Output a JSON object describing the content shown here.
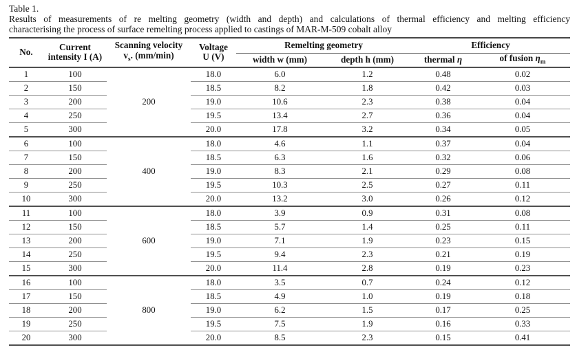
{
  "caption": {
    "label": "Table 1.",
    "line1": "Results of measurements of re melting geometry (width and depth) and calculations of thermal efficiency and melting efficiency",
    "line2": "characterising the process of surface remelting process applied to castings of MAR-M-509 cobalt alloy"
  },
  "table": {
    "header": {
      "no": "No.",
      "current_line1": "Current",
      "current_line2": "intensity I (A)",
      "scanning_line1": "Scanning velocity",
      "scanning_v": "v",
      "scanning_sub": "s",
      "scanning_rest": ". (mm/min)",
      "voltage_line1": "Voltage",
      "voltage_line2": "U (V)",
      "remelting_group": "Remelting geometry",
      "efficiency_group": "Efficiency",
      "width": "width w (mm)",
      "depth": "depth h (mm)",
      "thermal_label": "thermal",
      "thermal_symbol": "η",
      "fusion_label": "of fusion",
      "fusion_symbol": "η",
      "fusion_sub": "m"
    },
    "groups": [
      {
        "velocity": "200",
        "rows": [
          {
            "no": "1",
            "current": "100",
            "voltage": "18.0",
            "width": "6.0",
            "depth": "1.2",
            "thermal": "0.48",
            "fusion": "0.02"
          },
          {
            "no": "2",
            "current": "150",
            "voltage": "18.5",
            "width": "8.2",
            "depth": "1.8",
            "thermal": "0.42",
            "fusion": "0.03"
          },
          {
            "no": "3",
            "current": "200",
            "voltage": "19.0",
            "width": "10.6",
            "depth": "2.3",
            "thermal": "0.38",
            "fusion": "0.04"
          },
          {
            "no": "4",
            "current": "250",
            "voltage": "19.5",
            "width": "13.4",
            "depth": "2.7",
            "thermal": "0.36",
            "fusion": "0.04"
          },
          {
            "no": "5",
            "current": "300",
            "voltage": "20.0",
            "width": "17.8",
            "depth": "3.2",
            "thermal": "0.34",
            "fusion": "0.05"
          }
        ]
      },
      {
        "velocity": "400",
        "rows": [
          {
            "no": "6",
            "current": "100",
            "voltage": "18.0",
            "width": "4.6",
            "depth": "1.1",
            "thermal": "0.37",
            "fusion": "0.04"
          },
          {
            "no": "7",
            "current": "150",
            "voltage": "18.5",
            "width": "6.3",
            "depth": "1.6",
            "thermal": "0.32",
            "fusion": "0.06"
          },
          {
            "no": "8",
            "current": "200",
            "voltage": "19.0",
            "width": "8.3",
            "depth": "2.1",
            "thermal": "0.29",
            "fusion": "0.08"
          },
          {
            "no": "9",
            "current": "250",
            "voltage": "19.5",
            "width": "10.3",
            "depth": "2.5",
            "thermal": "0.27",
            "fusion": "0.11"
          },
          {
            "no": "10",
            "current": "300",
            "voltage": "20.0",
            "width": "13.2",
            "depth": "3.0",
            "thermal": "0.26",
            "fusion": "0.12"
          }
        ]
      },
      {
        "velocity": "600",
        "rows": [
          {
            "no": "11",
            "current": "100",
            "voltage": "18.0",
            "width": "3.9",
            "depth": "0.9",
            "thermal": "0.31",
            "fusion": "0.08"
          },
          {
            "no": "12",
            "current": "150",
            "voltage": "18.5",
            "width": "5.7",
            "depth": "1.4",
            "thermal": "0.25",
            "fusion": "0.11"
          },
          {
            "no": "13",
            "current": "200",
            "voltage": "19.0",
            "width": "7.1",
            "depth": "1.9",
            "thermal": "0.23",
            "fusion": "0.15"
          },
          {
            "no": "14",
            "current": "250",
            "voltage": "19.5",
            "width": "9.4",
            "depth": "2.3",
            "thermal": "0.21",
            "fusion": "0.19"
          },
          {
            "no": "15",
            "current": "300",
            "voltage": "20.0",
            "width": "11.4",
            "depth": "2.8",
            "thermal": "0.19",
            "fusion": "0.23"
          }
        ]
      },
      {
        "velocity": "800",
        "rows": [
          {
            "no": "16",
            "current": "100",
            "voltage": "18.0",
            "width": "3.5",
            "depth": "0.7",
            "thermal": "0.24",
            "fusion": "0.12"
          },
          {
            "no": "17",
            "current": "150",
            "voltage": "18.5",
            "width": "4.9",
            "depth": "1.0",
            "thermal": "0.19",
            "fusion": "0.18"
          },
          {
            "no": "18",
            "current": "200",
            "voltage": "19.0",
            "width": "6.2",
            "depth": "1.5",
            "thermal": "0.17",
            "fusion": "0.25"
          },
          {
            "no": "19",
            "current": "250",
            "voltage": "19.5",
            "width": "7.5",
            "depth": "1.9",
            "thermal": "0.16",
            "fusion": "0.33"
          },
          {
            "no": "20",
            "current": "300",
            "voltage": "20.0",
            "width": "8.5",
            "depth": "2.3",
            "thermal": "0.15",
            "fusion": "0.41"
          }
        ]
      }
    ]
  }
}
